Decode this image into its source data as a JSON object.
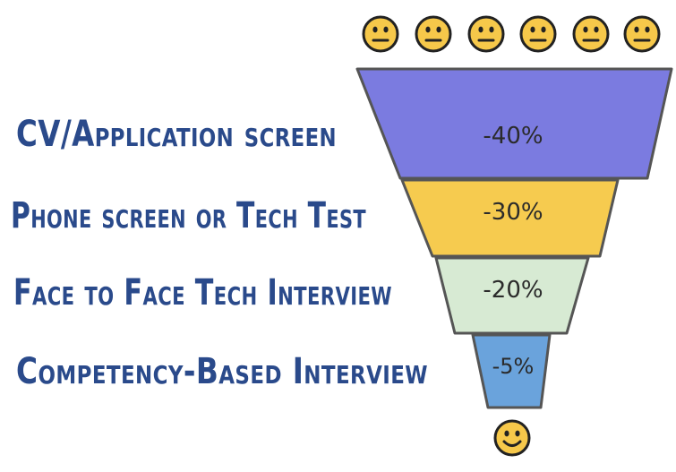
{
  "stages": [
    {
      "label": "CV/Application screen",
      "percent": "-40%",
      "color": "#7b7be0"
    },
    {
      "label": "Phone screen or Tech Test",
      "percent": "-30%",
      "color": "#f6cb4f"
    },
    {
      "label": "Face to Face Tech Interview",
      "percent": "-20%",
      "color": "#d7ead3"
    },
    {
      "label": "Competency-Based Interview",
      "percent": "-5%",
      "color": "#6aa3dc"
    }
  ],
  "candidate_faces": {
    "count": 6,
    "expression": "neutral"
  },
  "result_face": {
    "count": 1,
    "expression": "smiling"
  },
  "colors": {
    "label_text": "#2a4a8b",
    "outline": "#555555",
    "face_fill": "#f6c84a",
    "face_stroke": "#222222"
  }
}
